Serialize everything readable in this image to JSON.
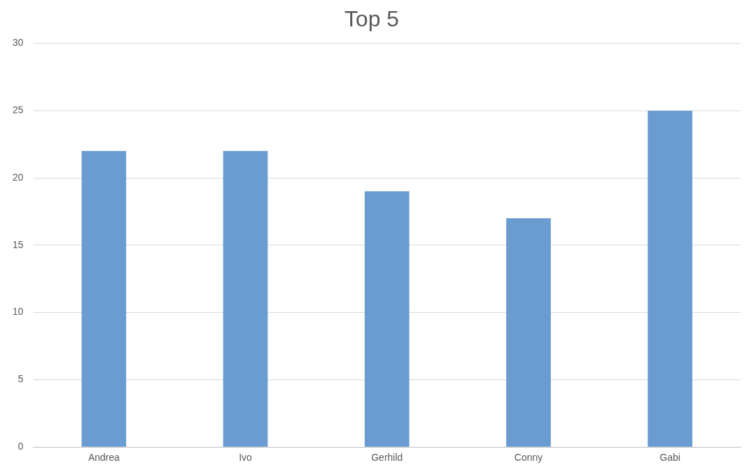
{
  "chart_data": {
    "type": "bar",
    "title": "Top 5",
    "categories": [
      "Andrea",
      "Ivo",
      "Gerhild",
      "Conny",
      "Gabi"
    ],
    "values": [
      22,
      22,
      19,
      17,
      25
    ],
    "color": "#6a9bd1",
    "ylim": [
      0,
      30
    ],
    "yticks": [
      0,
      5,
      10,
      15,
      20,
      25,
      30
    ],
    "grid": "y"
  }
}
